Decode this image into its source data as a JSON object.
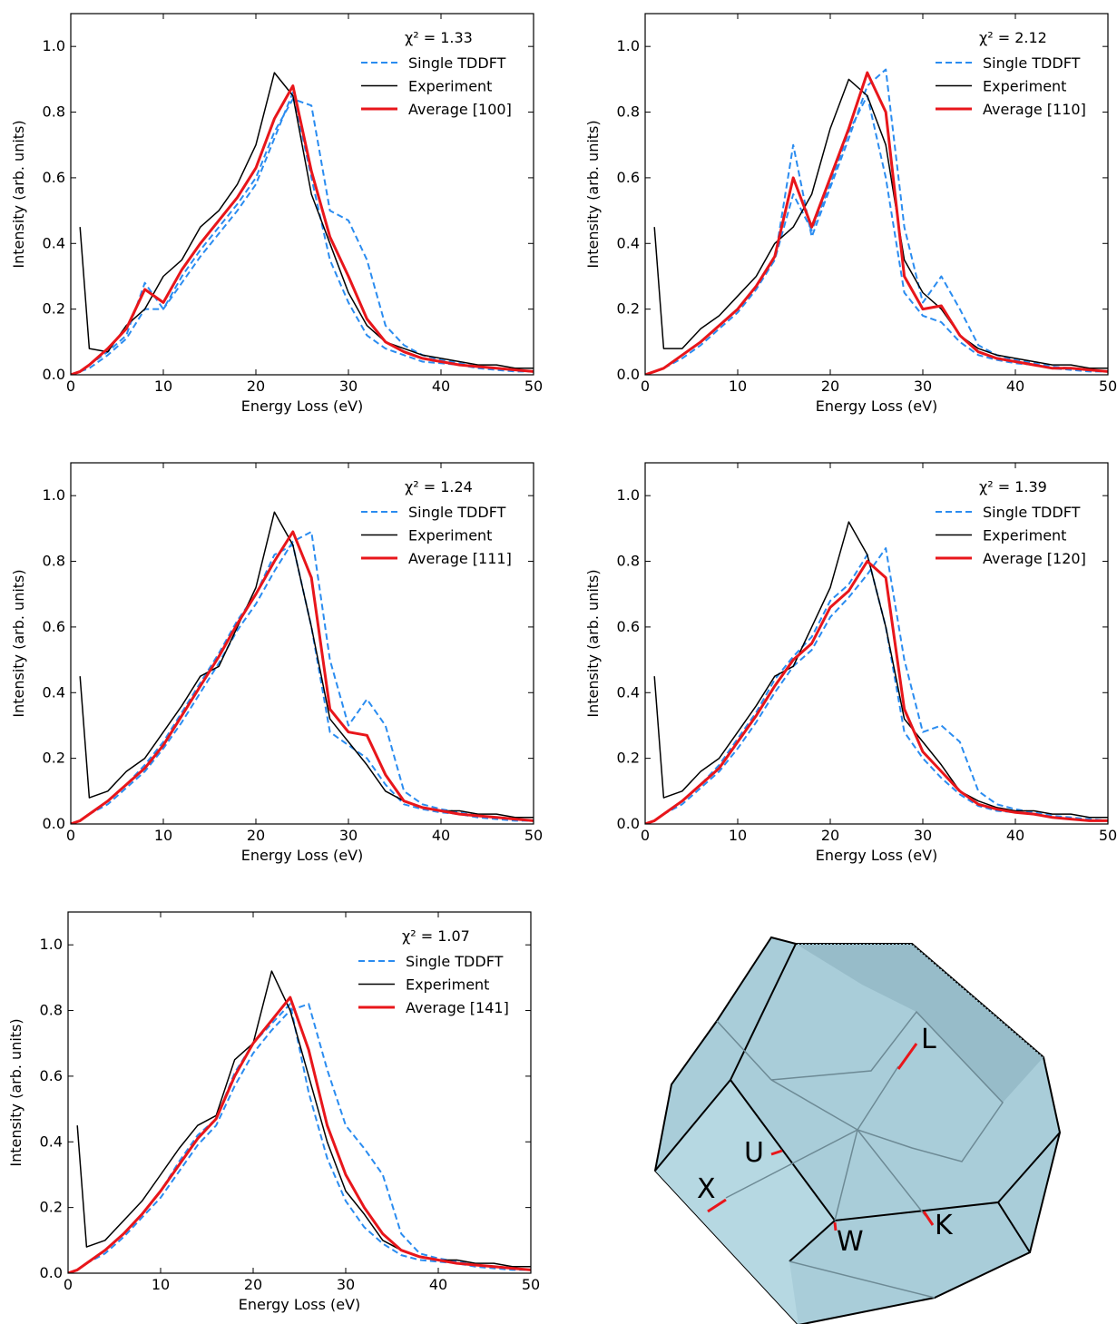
{
  "chart_data": [
    {
      "type": "line",
      "annotation": "χ² = 1.33",
      "xlabel": "Energy Loss (eV)",
      "ylabel": "Intensity (arb. units)",
      "legend": "upper right",
      "xlim": [
        0,
        50
      ],
      "xticks": [
        0,
        10,
        20,
        30,
        40,
        50
      ],
      "ylim": [
        0,
        1.1
      ],
      "yticks": [
        {
          "value": 0,
          "label": "0.0"
        },
        0.2,
        0.4,
        0.6,
        0.8,
        {
          "value": 1,
          "label": "1.0"
        }
      ],
      "x": [
        0,
        1,
        2,
        4,
        6,
        8,
        10,
        12,
        14,
        16,
        18,
        20,
        22,
        24,
        26,
        28,
        30,
        32,
        34,
        36,
        38,
        40,
        42,
        44,
        46,
        48,
        50
      ],
      "series": [
        {
          "name": "Single TDDFT",
          "color": "#2a8cf0",
          "linestyle": "dashed",
          "linewidth": 2,
          "values": [
            0,
            0.01,
            0.03,
            0.07,
            0.12,
            0.28,
            0.2,
            0.3,
            0.38,
            0.45,
            0.52,
            0.6,
            0.74,
            0.84,
            0.82,
            0.5,
            0.47,
            0.35,
            0.15,
            0.09,
            0.06,
            0.045,
            0.035,
            0.025,
            0.02,
            0.015,
            0.01
          ]
        },
        {
          "name": "Single TDDFT",
          "color": "#2a8cf0",
          "linestyle": "dashed",
          "linewidth": 2,
          "values": [
            0,
            0.01,
            0.02,
            0.06,
            0.11,
            0.2,
            0.2,
            0.28,
            0.36,
            0.43,
            0.5,
            0.58,
            0.72,
            0.86,
            0.6,
            0.35,
            0.22,
            0.12,
            0.08,
            0.06,
            0.04,
            0.035,
            0.03,
            0.02,
            0.015,
            0.01,
            0.01
          ]
        },
        {
          "name": "Experiment",
          "color": "#000000",
          "linestyle": "solid",
          "linewidth": 1.5,
          "values": [
            null,
            0.45,
            0.08,
            0.07,
            0.15,
            0.2,
            0.3,
            0.35,
            0.45,
            0.5,
            0.58,
            0.7,
            0.92,
            0.85,
            0.55,
            0.4,
            0.25,
            0.15,
            0.1,
            0.08,
            0.06,
            0.05,
            0.04,
            0.03,
            0.03,
            0.02,
            0.02
          ]
        },
        {
          "name": "Average [100]",
          "color": "#e8161b",
          "linestyle": "solid",
          "linewidth": 3,
          "values": [
            0,
            0.01,
            0.03,
            0.08,
            0.14,
            0.26,
            0.22,
            0.32,
            0.4,
            0.47,
            0.54,
            0.63,
            0.78,
            0.88,
            0.62,
            0.42,
            0.3,
            0.17,
            0.1,
            0.07,
            0.05,
            0.04,
            0.03,
            0.025,
            0.02,
            0.015,
            0.01
          ]
        }
      ]
    },
    {
      "type": "line",
      "annotation": "χ² = 2.12",
      "xlabel": "Energy Loss (eV)",
      "ylabel": "Intensity (arb. units)",
      "legend": "upper right",
      "xlim": [
        0,
        50
      ],
      "xticks": [
        0,
        10,
        20,
        30,
        40,
        50
      ],
      "ylim": [
        0,
        1.1
      ],
      "yticks": [
        {
          "value": 0,
          "label": "0.0"
        },
        0.2,
        0.4,
        0.6,
        0.8,
        {
          "value": 1,
          "label": "1.0"
        }
      ],
      "x": [
        0,
        1,
        2,
        4,
        6,
        8,
        10,
        12,
        14,
        16,
        18,
        20,
        22,
        24,
        26,
        28,
        30,
        32,
        34,
        36,
        38,
        40,
        42,
        44,
        46,
        48,
        50
      ],
      "series": [
        {
          "name": "Single TDDFT",
          "color": "#2a8cf0",
          "linestyle": "dashed",
          "linewidth": 2,
          "values": [
            0,
            0.01,
            0.02,
            0.05,
            0.09,
            0.14,
            0.19,
            0.26,
            0.35,
            0.7,
            0.42,
            0.57,
            0.72,
            0.88,
            0.93,
            0.45,
            0.22,
            0.3,
            0.2,
            0.09,
            0.06,
            0.045,
            0.035,
            0.025,
            0.02,
            0.015,
            0.01
          ]
        },
        {
          "name": "Single TDDFT",
          "color": "#2a8cf0",
          "linestyle": "dashed",
          "linewidth": 2,
          "values": [
            0,
            0.01,
            0.02,
            0.06,
            0.1,
            0.15,
            0.2,
            0.27,
            0.35,
            0.55,
            0.44,
            0.58,
            0.74,
            0.85,
            0.6,
            0.25,
            0.18,
            0.16,
            0.1,
            0.06,
            0.045,
            0.035,
            0.03,
            0.02,
            0.015,
            0.01,
            0.01
          ]
        },
        {
          "name": "Experiment",
          "color": "#000000",
          "linestyle": "solid",
          "linewidth": 1.5,
          "values": [
            null,
            0.45,
            0.08,
            0.08,
            0.14,
            0.18,
            0.24,
            0.3,
            0.4,
            0.45,
            0.55,
            0.75,
            0.9,
            0.85,
            0.7,
            0.35,
            0.25,
            0.2,
            0.12,
            0.08,
            0.06,
            0.05,
            0.04,
            0.03,
            0.03,
            0.02,
            0.02
          ]
        },
        {
          "name": "Average [110]",
          "color": "#e8161b",
          "linestyle": "solid",
          "linewidth": 3,
          "values": [
            0,
            0.01,
            0.02,
            0.06,
            0.1,
            0.15,
            0.2,
            0.27,
            0.36,
            0.6,
            0.45,
            0.6,
            0.75,
            0.92,
            0.8,
            0.3,
            0.2,
            0.21,
            0.12,
            0.07,
            0.05,
            0.04,
            0.03,
            0.02,
            0.02,
            0.015,
            0.01
          ]
        }
      ]
    },
    {
      "type": "line",
      "annotation": "χ² = 1.24",
      "xlabel": "Energy Loss (eV)",
      "ylabel": "Intensity (arb. units)",
      "legend": "upper right",
      "xlim": [
        0,
        50
      ],
      "xticks": [
        0,
        10,
        20,
        30,
        40,
        50
      ],
      "ylim": [
        0,
        1.1
      ],
      "yticks": [
        {
          "value": 0,
          "label": "0.0"
        },
        0.2,
        0.4,
        0.6,
        0.8,
        {
          "value": 1,
          "label": "1.0"
        }
      ],
      "x": [
        0,
        1,
        2,
        4,
        6,
        8,
        10,
        12,
        14,
        16,
        18,
        20,
        22,
        24,
        26,
        28,
        30,
        32,
        34,
        36,
        38,
        40,
        42,
        44,
        46,
        48,
        50
      ],
      "series": [
        {
          "name": "Single TDDFT",
          "color": "#2a8cf0",
          "linestyle": "dashed",
          "linewidth": 2,
          "values": [
            0,
            0.01,
            0.03,
            0.06,
            0.11,
            0.16,
            0.23,
            0.31,
            0.4,
            0.49,
            0.59,
            0.67,
            0.77,
            0.86,
            0.89,
            0.5,
            0.3,
            0.38,
            0.3,
            0.1,
            0.06,
            0.045,
            0.035,
            0.025,
            0.02,
            0.015,
            0.01
          ]
        },
        {
          "name": "Single TDDFT",
          "color": "#2a8cf0",
          "linestyle": "dashed",
          "linewidth": 2,
          "values": [
            0,
            0.01,
            0.03,
            0.07,
            0.12,
            0.18,
            0.25,
            0.34,
            0.43,
            0.52,
            0.62,
            0.7,
            0.82,
            0.85,
            0.6,
            0.28,
            0.24,
            0.2,
            0.12,
            0.06,
            0.045,
            0.035,
            0.03,
            0.02,
            0.015,
            0.01,
            0.01
          ]
        },
        {
          "name": "Experiment",
          "color": "#000000",
          "linestyle": "solid",
          "linewidth": 1.5,
          "values": [
            null,
            0.45,
            0.08,
            0.1,
            0.16,
            0.2,
            0.28,
            0.36,
            0.45,
            0.48,
            0.6,
            0.72,
            0.95,
            0.85,
            0.6,
            0.32,
            0.25,
            0.18,
            0.1,
            0.07,
            0.05,
            0.04,
            0.04,
            0.03,
            0.03,
            0.02,
            0.02
          ]
        },
        {
          "name": "Average [111]",
          "color": "#e8161b",
          "linestyle": "solid",
          "linewidth": 3,
          "values": [
            0,
            0.01,
            0.03,
            0.07,
            0.12,
            0.17,
            0.24,
            0.33,
            0.42,
            0.51,
            0.61,
            0.7,
            0.8,
            0.89,
            0.75,
            0.35,
            0.28,
            0.27,
            0.15,
            0.07,
            0.05,
            0.04,
            0.03,
            0.025,
            0.02,
            0.015,
            0.01
          ]
        }
      ]
    },
    {
      "type": "line",
      "annotation": "χ² = 1.39",
      "xlabel": "Energy Loss (eV)",
      "ylabel": "Intensity (arb. units)",
      "legend": "upper right",
      "xlim": [
        0,
        50
      ],
      "xticks": [
        0,
        10,
        20,
        30,
        40,
        50
      ],
      "ylim": [
        0,
        1.1
      ],
      "yticks": [
        {
          "value": 0,
          "label": "0.0"
        },
        0.2,
        0.4,
        0.6,
        0.8,
        {
          "value": 1,
          "label": "1.0"
        }
      ],
      "x": [
        0,
        1,
        2,
        4,
        6,
        8,
        10,
        12,
        14,
        16,
        18,
        20,
        22,
        24,
        26,
        28,
        30,
        32,
        34,
        36,
        38,
        40,
        42,
        44,
        46,
        48,
        50
      ],
      "series": [
        {
          "name": "Single TDDFT",
          "color": "#2a8cf0",
          "linestyle": "dashed",
          "linewidth": 2,
          "values": [
            0,
            0.01,
            0.03,
            0.06,
            0.11,
            0.16,
            0.23,
            0.31,
            0.4,
            0.48,
            0.53,
            0.63,
            0.69,
            0.76,
            0.84,
            0.5,
            0.28,
            0.3,
            0.25,
            0.1,
            0.06,
            0.045,
            0.035,
            0.025,
            0.02,
            0.015,
            0.01
          ]
        },
        {
          "name": "Single TDDFT",
          "color": "#2a8cf0",
          "linestyle": "dashed",
          "linewidth": 2,
          "values": [
            0,
            0.01,
            0.03,
            0.07,
            0.12,
            0.18,
            0.26,
            0.34,
            0.44,
            0.51,
            0.57,
            0.68,
            0.73,
            0.82,
            0.6,
            0.28,
            0.2,
            0.14,
            0.09,
            0.055,
            0.04,
            0.035,
            0.03,
            0.02,
            0.015,
            0.01,
            0.01
          ]
        },
        {
          "name": "Experiment",
          "color": "#000000",
          "linestyle": "solid",
          "linewidth": 1.5,
          "values": [
            null,
            0.45,
            0.08,
            0.1,
            0.16,
            0.2,
            0.28,
            0.36,
            0.45,
            0.48,
            0.6,
            0.72,
            0.92,
            0.82,
            0.6,
            0.32,
            0.25,
            0.18,
            0.1,
            0.07,
            0.05,
            0.04,
            0.04,
            0.03,
            0.03,
            0.02,
            0.02
          ]
        },
        {
          "name": "Average [120]",
          "color": "#e8161b",
          "linestyle": "solid",
          "linewidth": 3,
          "values": [
            0,
            0.01,
            0.03,
            0.07,
            0.12,
            0.17,
            0.25,
            0.33,
            0.42,
            0.5,
            0.55,
            0.66,
            0.71,
            0.8,
            0.75,
            0.35,
            0.22,
            0.16,
            0.1,
            0.06,
            0.045,
            0.035,
            0.03,
            0.02,
            0.015,
            0.01,
            0.01
          ]
        }
      ]
    },
    {
      "type": "line",
      "annotation": "χ² = 1.07",
      "xlabel": "Energy Loss (eV)",
      "ylabel": "Intensity (arb. units)",
      "legend": "upper right",
      "xlim": [
        0,
        50
      ],
      "xticks": [
        0,
        10,
        20,
        30,
        40,
        50
      ],
      "ylim": [
        0,
        1.1
      ],
      "yticks": [
        {
          "value": 0,
          "label": "0.0"
        },
        0.2,
        0.4,
        0.6,
        0.8,
        {
          "value": 1,
          "label": "1.0"
        }
      ],
      "x": [
        0,
        1,
        2,
        4,
        6,
        8,
        10,
        12,
        14,
        16,
        18,
        20,
        22,
        24,
        26,
        28,
        30,
        32,
        34,
        36,
        38,
        40,
        42,
        44,
        46,
        48,
        50
      ],
      "series": [
        {
          "name": "Single TDDFT",
          "color": "#2a8cf0",
          "linestyle": "dashed",
          "linewidth": 2,
          "values": [
            0,
            0.01,
            0.03,
            0.06,
            0.11,
            0.17,
            0.23,
            0.31,
            0.39,
            0.45,
            0.57,
            0.67,
            0.74,
            0.8,
            0.82,
            0.62,
            0.45,
            0.38,
            0.3,
            0.12,
            0.06,
            0.045,
            0.035,
            0.025,
            0.02,
            0.015,
            0.01
          ]
        },
        {
          "name": "Single TDDFT",
          "color": "#2a8cf0",
          "linestyle": "dashed",
          "linewidth": 2,
          "values": [
            0,
            0.01,
            0.03,
            0.07,
            0.12,
            0.18,
            0.25,
            0.34,
            0.42,
            0.47,
            0.61,
            0.7,
            0.76,
            0.82,
            0.55,
            0.35,
            0.22,
            0.14,
            0.09,
            0.055,
            0.04,
            0.035,
            0.03,
            0.02,
            0.015,
            0.01,
            0.01
          ]
        },
        {
          "name": "Experiment",
          "color": "#000000",
          "linestyle": "solid",
          "linewidth": 1.5,
          "values": [
            null,
            0.45,
            0.08,
            0.1,
            0.16,
            0.22,
            0.3,
            0.38,
            0.45,
            0.48,
            0.65,
            0.7,
            0.92,
            0.8,
            0.6,
            0.4,
            0.25,
            0.18,
            0.1,
            0.07,
            0.05,
            0.04,
            0.04,
            0.03,
            0.03,
            0.02,
            0.02
          ]
        },
        {
          "name": "Average [141]",
          "color": "#e8161b",
          "linestyle": "solid",
          "linewidth": 3,
          "values": [
            0,
            0.01,
            0.03,
            0.07,
            0.12,
            0.18,
            0.25,
            0.33,
            0.41,
            0.47,
            0.6,
            0.7,
            0.77,
            0.84,
            0.68,
            0.45,
            0.3,
            0.2,
            0.12,
            0.07,
            0.05,
            0.04,
            0.03,
            0.025,
            0.02,
            0.015,
            0.01
          ]
        }
      ]
    }
  ],
  "diagram": {
    "labels": [
      "L",
      "U",
      "X",
      "W",
      "K"
    ]
  }
}
